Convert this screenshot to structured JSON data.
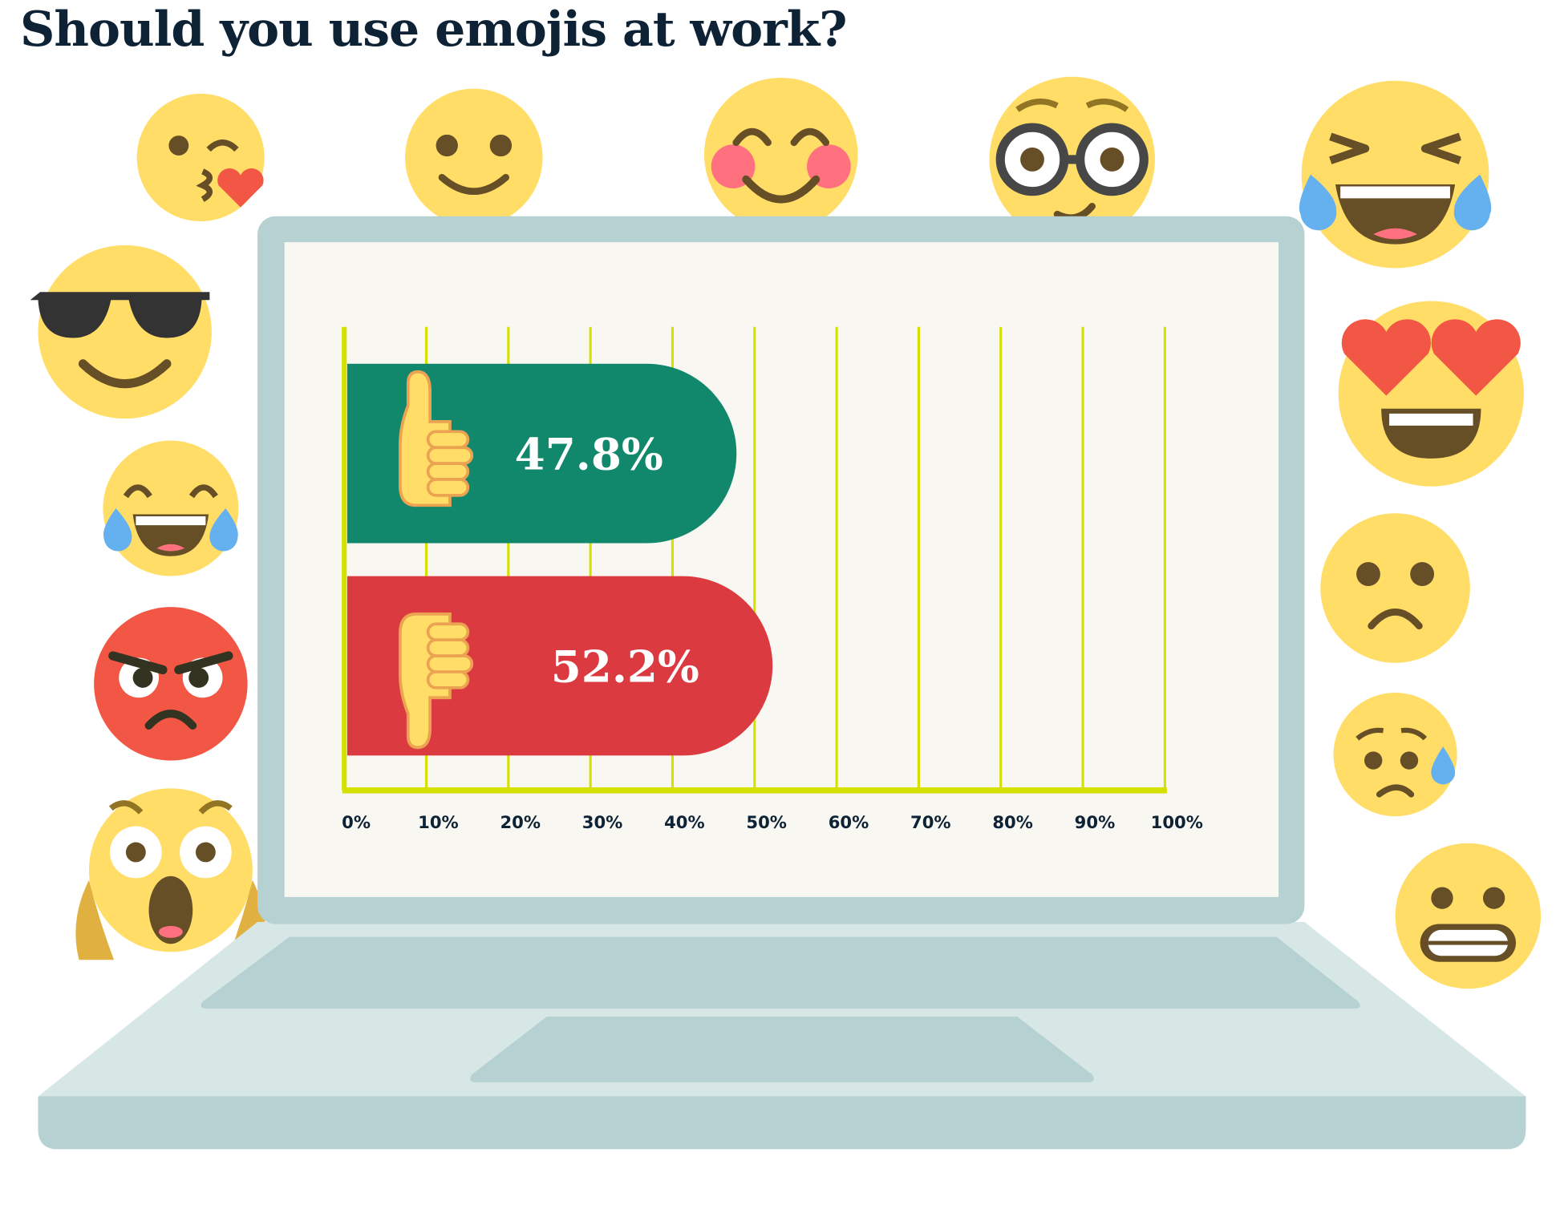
{
  "title": "Should you use emojis at work?",
  "chart_data": {
    "type": "bar",
    "orientation": "horizontal",
    "title": "Should you use emojis at work?",
    "categories": [
      "thumbs-up",
      "thumbs-down"
    ],
    "values": [
      47.8,
      52.2
    ],
    "value_labels": [
      "47.8%",
      "52.2%"
    ],
    "xlim": [
      0,
      100
    ],
    "x_ticks": [
      "0%",
      "10%",
      "20%",
      "30%",
      "40%",
      "50%",
      "60%",
      "70%",
      "80%",
      "90%",
      "100%"
    ],
    "grid": true,
    "colors": [
      "#11876B",
      "#DB3A41"
    ],
    "gridline_color": "#D4E000"
  },
  "colors": {
    "emoji_yellow": "#FFDD67",
    "emoji_brown": "#664E27",
    "laptop_bezel": "#B5D1D1",
    "screen": "#F8F7F2"
  },
  "decorations": [
    "kissing-heart-emoji",
    "smile-emoji",
    "blush-emoji",
    "nerd-glasses-emoji",
    "tears-of-joy-emoji",
    "sunglasses-emoji",
    "heart-eyes-emoji",
    "laughing-tears-emoji",
    "angry-emoji",
    "frown-emoji",
    "scream-emoji",
    "worried-sweat-emoji",
    "grimace-emoji",
    "thumbs-up-icon",
    "thumbs-down-icon"
  ]
}
